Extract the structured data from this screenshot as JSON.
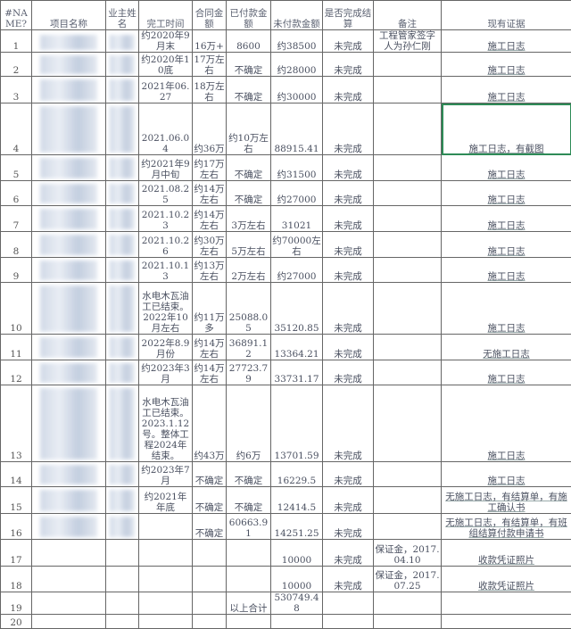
{
  "header": {
    "row_no": "#NAME?",
    "project_name": "项目名称",
    "owner_name": "业主姓名",
    "completion_time": "完工时间",
    "contract_amount": "合同金额",
    "paid_amount": "已付款金额",
    "unpaid_amount": "未付款金额",
    "settled": "是否完成结算",
    "notes": "备注",
    "evidence": "现有证据"
  },
  "selection_color": "#2e8b57",
  "rows": [
    {
      "no": "1",
      "completion": "约2020年9月末",
      "contract": "16万+",
      "paid": "8600",
      "unpaid": "约38500",
      "settled": "未完成",
      "note": "工程管家签字人为孙仁刚",
      "evidence": "施工日志"
    },
    {
      "no": "2",
      "completion": "约2020年10底",
      "contract": "17万左右",
      "paid": "不确定",
      "unpaid": "约28000",
      "settled": "未完成",
      "note": "",
      "evidence": "施工日志"
    },
    {
      "no": "3",
      "completion": "2021年06.27",
      "contract": "18万左右",
      "paid": "不确定",
      "unpaid": "约30000",
      "settled": "未完成",
      "note": "",
      "evidence": "施工日志"
    },
    {
      "no": "4",
      "completion": "2021.06.04",
      "contract": "约36万",
      "paid": "约10万左右",
      "unpaid": "88915.41",
      "settled": "未完成",
      "note": "",
      "evidence": "施工日志，有截图"
    },
    {
      "no": "5",
      "completion": "约2021年9月中旬",
      "contract": "约17万左右",
      "paid": "不确定",
      "unpaid": "约31500",
      "settled": "未完成",
      "note": "",
      "evidence": "施工日志"
    },
    {
      "no": "6",
      "completion": "2021.08.25",
      "contract": "约14万左右",
      "paid": "不确定",
      "unpaid": "约27000",
      "settled": "未完成",
      "note": "",
      "evidence": "施工日志"
    },
    {
      "no": "7",
      "completion": "2021.10.23",
      "contract": "约14万左右",
      "paid": "3万左右",
      "unpaid": "31021",
      "settled": "未完成",
      "note": "",
      "evidence": "施工日志"
    },
    {
      "no": "8",
      "completion": "2021.10.26",
      "contract": "约30万左右",
      "paid": "5万左右",
      "unpaid": "约70000左右",
      "settled": "未完成",
      "note": "",
      "evidence": "施工日志"
    },
    {
      "no": "9",
      "completion": "2021.10.13",
      "contract": "约13万左右",
      "paid": "2万左右",
      "unpaid": "约27000",
      "settled": "未完成",
      "note": "",
      "evidence": "施工日志"
    },
    {
      "no": "10",
      "completion": "水电木瓦油工已结束。2022年10月左右",
      "contract": "约11万多",
      "paid": "25088.05",
      "unpaid": "35120.85",
      "settled": "未完成",
      "note": "",
      "evidence": "施工日志"
    },
    {
      "no": "11",
      "completion": "2022年8.9月份",
      "contract": "约14万左右",
      "paid": "36891.12",
      "unpaid": "13364.21",
      "settled": "未完成",
      "note": "",
      "evidence": "无施工日志"
    },
    {
      "no": "12",
      "completion": "约2023年3月",
      "contract": "约14万左右",
      "paid": "27723.79",
      "unpaid": "33731.17",
      "settled": "未完成",
      "note": "",
      "evidence": "施工日志"
    },
    {
      "no": "13",
      "completion": "水电木瓦油工已结束。2023.1.12号。整体工程2024年结束。",
      "contract": "约43万",
      "paid": "约6万",
      "unpaid": "13701.59",
      "settled": "未完成",
      "note": "",
      "evidence": "施工日志"
    },
    {
      "no": "14",
      "completion": "约2023年7月",
      "contract": "不确定",
      "paid": "不确定",
      "unpaid": "16229.5",
      "settled": "未完成",
      "note": "",
      "evidence": "施工日志"
    },
    {
      "no": "15",
      "completion": "约2021年年底",
      "contract": "不确定",
      "paid": "不确定",
      "unpaid": "12414.5",
      "settled": "未完成",
      "note": "",
      "evidence": "无施工日志，有结算单，有施工确认书"
    },
    {
      "no": "16",
      "completion": "",
      "contract": "不确定",
      "paid": "60663.91",
      "unpaid": "14251.25",
      "settled": "未完成",
      "note": "",
      "evidence": "无施工日志，有结算单，有班组结算付款申请书"
    },
    {
      "no": "17",
      "completion": "",
      "contract": "",
      "paid": "",
      "unpaid": "10000",
      "settled": "未完成",
      "note": "保证金，2017.04.10",
      "evidence": "收款凭证照片"
    },
    {
      "no": "18",
      "completion": "",
      "contract": "",
      "paid": "",
      "unpaid": "10000",
      "settled": "未完成",
      "note": "保证金，2017.07.25",
      "evidence": "收款凭证照片"
    },
    {
      "no": "19",
      "completion": "",
      "contract": "",
      "paid": "以上合计",
      "unpaid": "530749.48",
      "settled": "",
      "note": "",
      "evidence": ""
    },
    {
      "no": "20",
      "completion": "",
      "contract": "",
      "paid": "",
      "unpaid": "",
      "settled": "",
      "note": "",
      "evidence": ""
    }
  ]
}
